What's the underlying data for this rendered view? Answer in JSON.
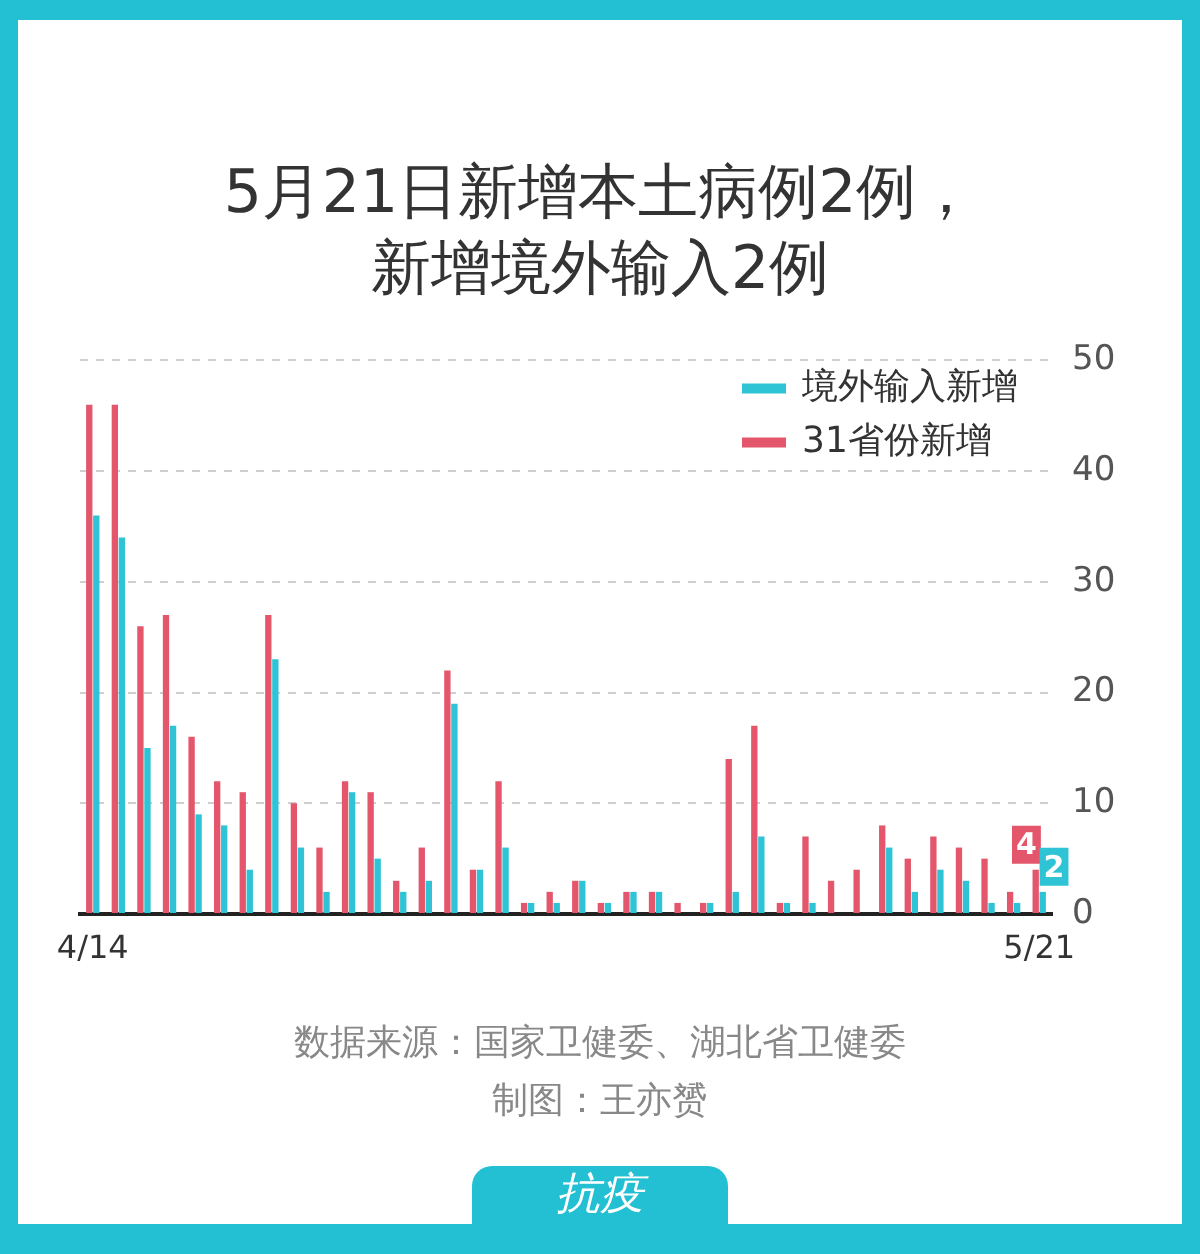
{
  "chart_data": {
    "type": "bar",
    "title": "5月21日新增本土病例2例，新增境外输入2例",
    "categories": [
      "4/14",
      null,
      null,
      null,
      null,
      null,
      null,
      null,
      null,
      null,
      null,
      null,
      null,
      null,
      null,
      null,
      null,
      null,
      null,
      null,
      null,
      null,
      null,
      null,
      null,
      null,
      null,
      null,
      null,
      null,
      null,
      null,
      null,
      null,
      null,
      null,
      null,
      "5/21"
    ],
    "series": [
      {
        "name": "31省份新增",
        "color": "#e4566b",
        "values": [
          46,
          46,
          26,
          27,
          16,
          12,
          11,
          27,
          10,
          6,
          12,
          11,
          3,
          6,
          22,
          4,
          12,
          1,
          2,
          3,
          1,
          2,
          2,
          1,
          1,
          14,
          17,
          1,
          7,
          3,
          4,
          8,
          5,
          7,
          6,
          5,
          2,
          4
        ],
        "value_labels": [
          null,
          null,
          null,
          null,
          null,
          null,
          null,
          null,
          null,
          null,
          null,
          null,
          null,
          null,
          null,
          null,
          null,
          null,
          null,
          null,
          null,
          null,
          null,
          null,
          null,
          null,
          null,
          null,
          null,
          null,
          null,
          null,
          null,
          null,
          null,
          null,
          null,
          "4"
        ]
      },
      {
        "name": "境外输入新增",
        "color": "#2ec4d6",
        "values": [
          36,
          34,
          15,
          17,
          9,
          8,
          4,
          23,
          6,
          2,
          11,
          5,
          2,
          3,
          19,
          4,
          6,
          1,
          1,
          3,
          1,
          2,
          2,
          0,
          1,
          2,
          7,
          1,
          1,
          0,
          0,
          6,
          2,
          4,
          3,
          1,
          1,
          2
        ],
        "value_labels": [
          null,
          null,
          null,
          null,
          null,
          null,
          null,
          null,
          null,
          null,
          null,
          null,
          null,
          null,
          null,
          null,
          null,
          null,
          null,
          null,
          null,
          null,
          null,
          null,
          null,
          null,
          null,
          null,
          null,
          null,
          null,
          null,
          null,
          null,
          null,
          null,
          null,
          "2"
        ]
      }
    ],
    "ylim": [
      0,
      50
    ],
    "yticks": [
      0,
      10,
      20,
      30,
      40,
      50
    ],
    "grid": "y",
    "legend": "top right",
    "annotations": [
      "数据来源：国家卫健委、湖北省卫健委",
      "制图：王亦赟",
      "抗疫"
    ]
  }
}
